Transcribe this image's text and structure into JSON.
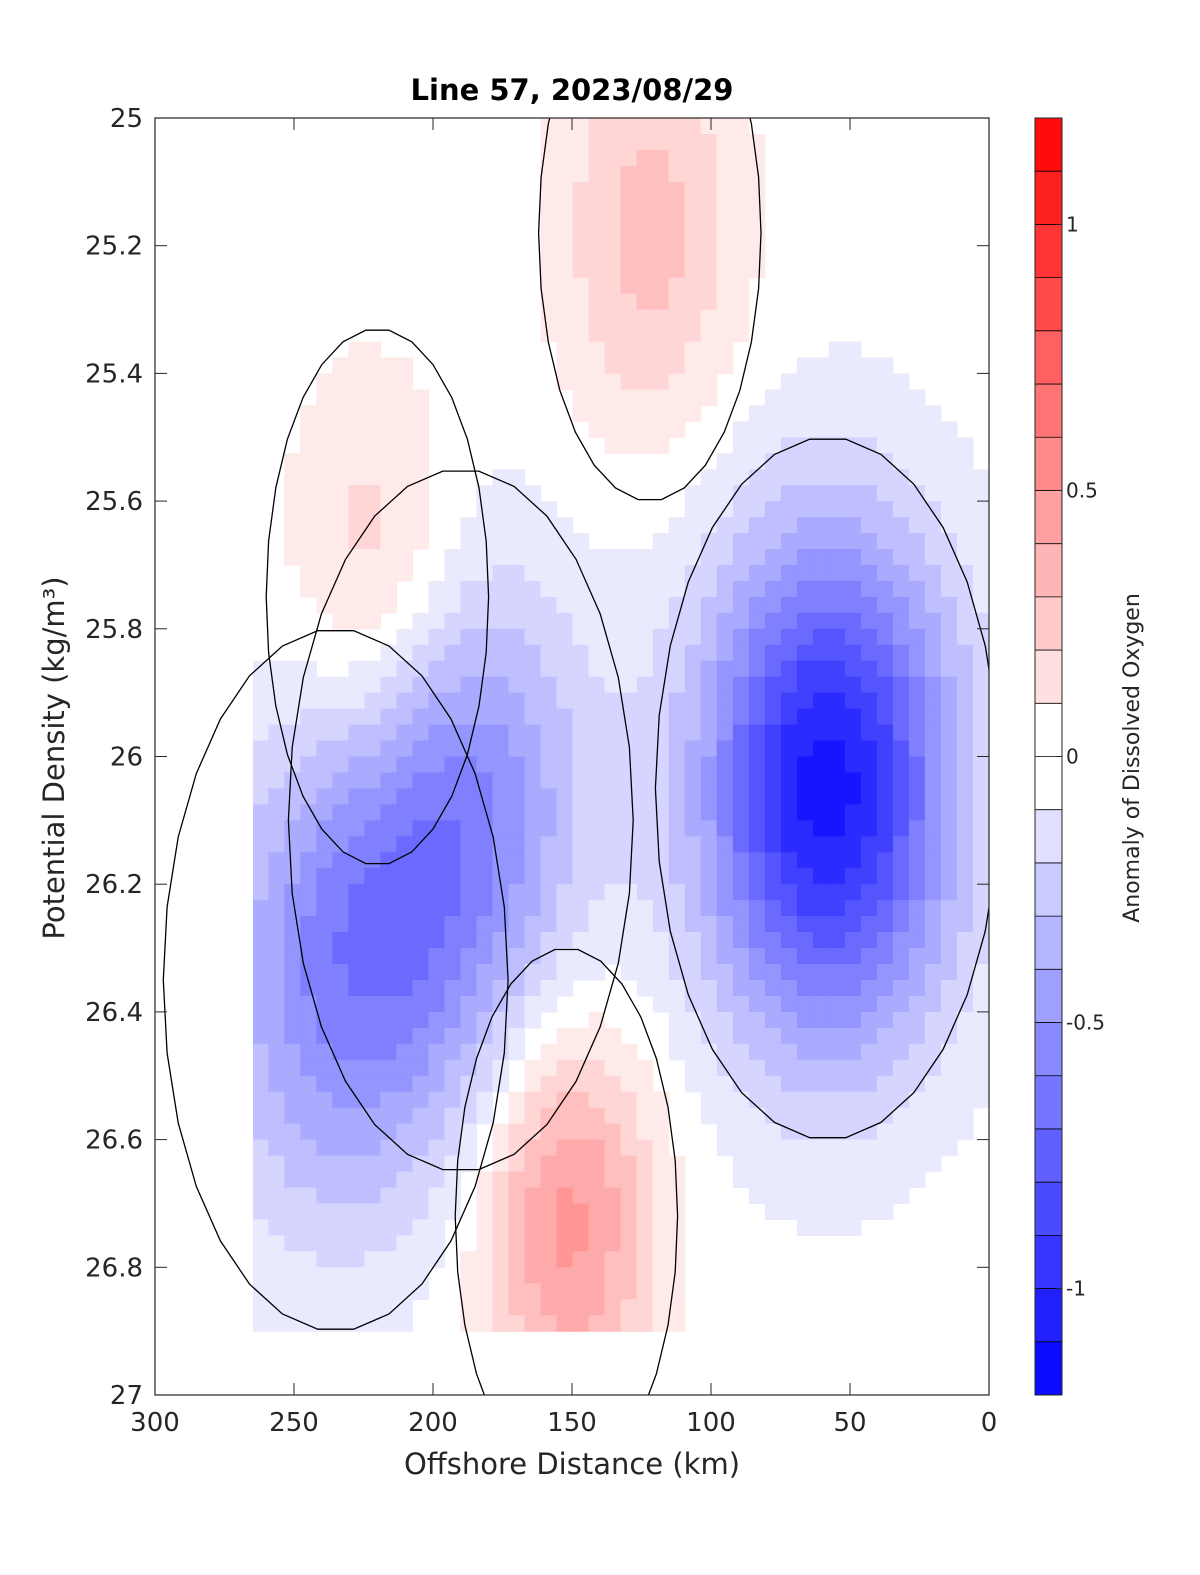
{
  "chart_data": {
    "type": "contour",
    "title": "Line 57, 2023/08/29",
    "xlabel": "Offshore Distance (km)",
    "ylabel": "Potential Density (kg/m³)",
    "xlim": [
      300,
      0
    ],
    "ylim": [
      25,
      27
    ],
    "x_reversed": true,
    "y_reversed": true,
    "xticks": [
      "300",
      "250",
      "200",
      "150",
      "100",
      "50",
      "0"
    ],
    "yticks": [
      "25",
      "25.2",
      "25.4",
      "25.6",
      "25.8",
      "26",
      "26.2",
      "26.4",
      "26.6",
      "26.8",
      "27"
    ],
    "colorbar": {
      "label": "Anomaly of Dissolved Oxygen",
      "range": [
        -1.2,
        1.2
      ],
      "ticks": [
        "1",
        "0.5",
        "0",
        "-0.5",
        "-1"
      ],
      "levels": 24,
      "colormap": "blue-white-red",
      "low_color": "#0000ff",
      "high_color": "#ff0000",
      "mid_color": "#ffffff"
    },
    "features": [
      {
        "kind": "positive",
        "x": 152,
        "y": 26.72,
        "value": 0.5
      },
      {
        "kind": "positive",
        "x": 220,
        "y": 25.75,
        "value": 0.3
      },
      {
        "kind": "positive",
        "x": 122,
        "y": 25.18,
        "value": 0.3
      },
      {
        "kind": "negative",
        "x": 58,
        "y": 26.05,
        "value": -1.1
      },
      {
        "kind": "negative",
        "x": 190,
        "y": 26.1,
        "value": -0.55
      },
      {
        "kind": "negative",
        "x": 235,
        "y": 26.35,
        "value": -0.5
      }
    ]
  }
}
